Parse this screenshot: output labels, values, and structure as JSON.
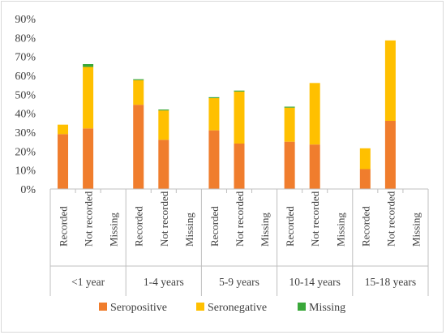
{
  "chart_data": {
    "type": "bar",
    "stacked": true,
    "groups": [
      "<1 year",
      "1-4 years",
      "5-9 years",
      "10-14 years",
      "15-18 years"
    ],
    "categories": [
      "Recorded",
      "Not recorded",
      "Missing"
    ],
    "y_tick_labels": [
      "0%",
      "10%",
      "20%",
      "30%",
      "40%",
      "50%",
      "60%",
      "70%",
      "80%",
      "90%"
    ],
    "ylim": [
      0,
      90
    ],
    "grid": false,
    "legend_position": "bottom",
    "series": [
      {
        "name": "Seropositive",
        "color": "#f07d2d",
        "values": [
          [
            29,
            32,
            0
          ],
          [
            44.5,
            26,
            0
          ],
          [
            31,
            24,
            0
          ],
          [
            25,
            23.5,
            0
          ],
          [
            10.5,
            36,
            0
          ]
        ]
      },
      {
        "name": "Seronegative",
        "color": "#ffc000",
        "values": [
          [
            5,
            32.5,
            0
          ],
          [
            13,
            15.5,
            0
          ],
          [
            17,
            27.5,
            0
          ],
          [
            18,
            32.5,
            0
          ],
          [
            11,
            42.5,
            0
          ]
        ]
      },
      {
        "name": "Missing",
        "color": "#3aa83a",
        "values": [
          [
            0,
            1.5,
            0
          ],
          [
            0.5,
            0.5,
            0
          ],
          [
            0.5,
            0.5,
            0
          ],
          [
            0.5,
            0,
            0
          ],
          [
            0,
            0,
            0
          ]
        ]
      }
    ]
  }
}
